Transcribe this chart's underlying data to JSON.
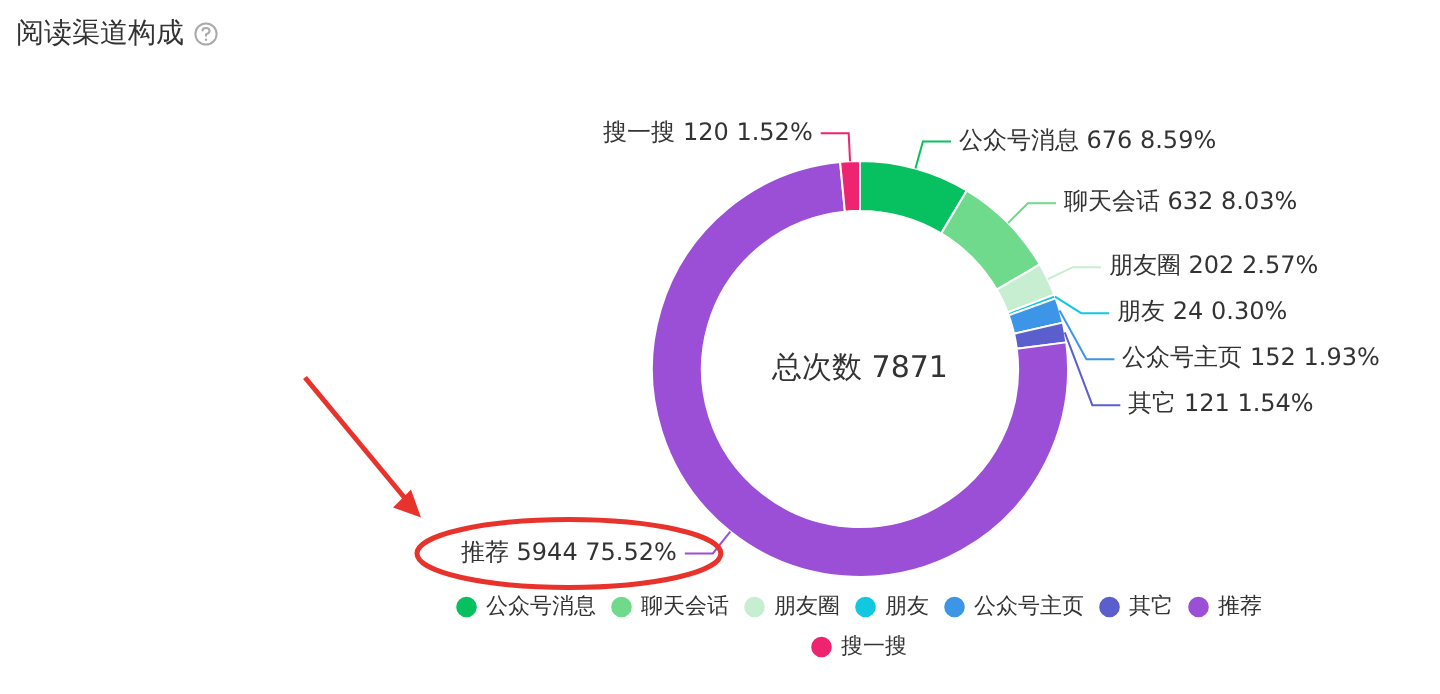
{
  "chart_data": {
    "type": "donut",
    "title": "阅读渠道构成",
    "categories": [
      "公众号消息",
      "聊天会话",
      "朋友圈",
      "朋友",
      "公众号主页",
      "其它",
      "推荐",
      "搜一搜"
    ],
    "values": [
      676,
      632,
      202,
      24,
      152,
      121,
      5944,
      120
    ],
    "colors": [
      "#07c160",
      "#6fd98c",
      "#c8eed2",
      "#12c8e0",
      "#3d95e8",
      "#5b5fce",
      "#9b4fd6",
      "#ef2470"
    ],
    "value_labels": [
      "公众号消息 676 8.59%",
      "聊天会话 632 8.03%",
      "朋友圈 202 2.57%",
      "朋友 24 0.30%",
      "公众号主页 152 1.93%",
      "其它 121 1.54%",
      "推荐 5944 75.52%",
      "搜一搜 120 1.52%"
    ],
    "annotations": [
      "总次数 7871"
    ],
    "legend": "bottom"
  }
}
